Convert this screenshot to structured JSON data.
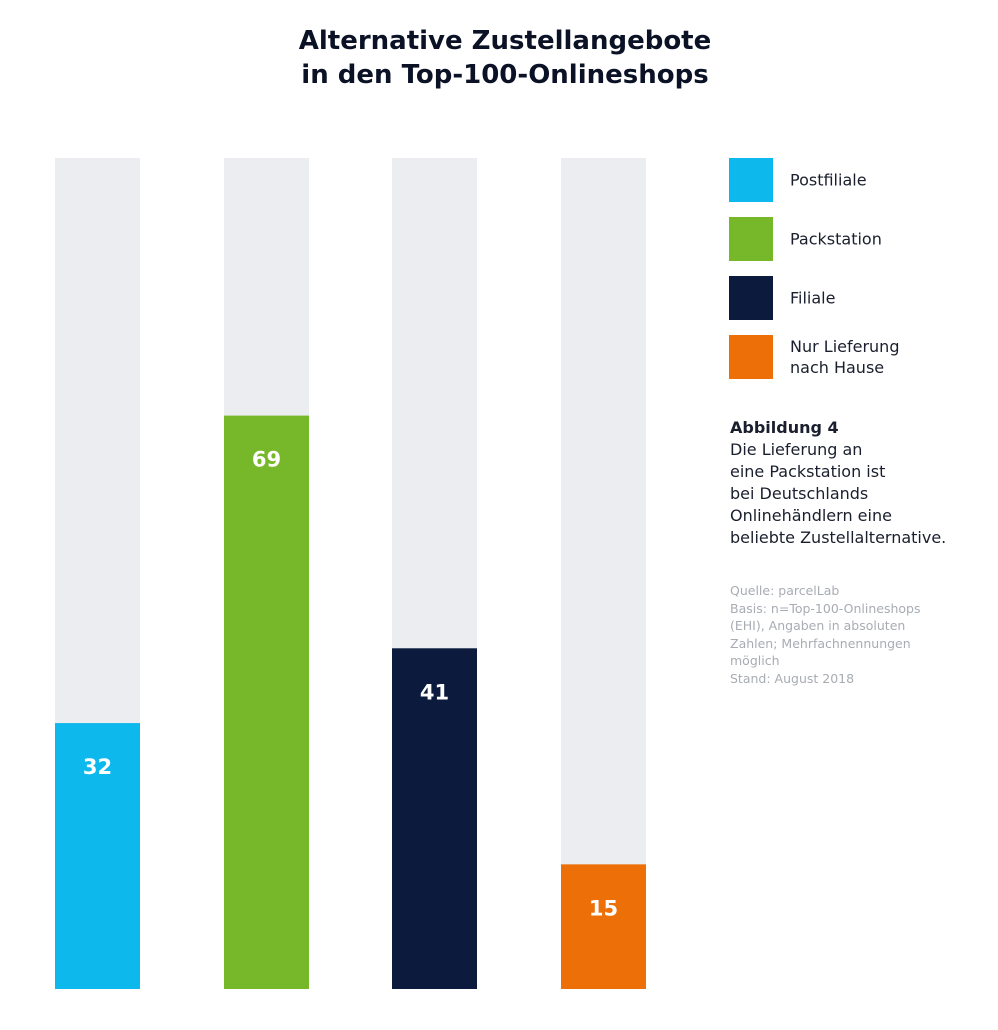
{
  "chart_data": {
    "type": "bar",
    "title": [
      "Alternative Zustellangebote",
      "in den Top-100-Onlineshops"
    ],
    "categories": [
      "Postfiliale",
      "Packstation",
      "Filiale",
      "Nur Lieferung nach Hause"
    ],
    "values": [
      32,
      69,
      41,
      15
    ],
    "colors": [
      "#0db8ec",
      "#76b82a",
      "#0b1a3d",
      "#ec7007"
    ],
    "track_color": "#ecedf1",
    "ylim": [
      0,
      100
    ],
    "xlabel": "",
    "ylabel": "",
    "grid": false,
    "legend_position": "right"
  },
  "legend": {
    "items": [
      {
        "label": "Postfiliale",
        "color": "#0db8ec"
      },
      {
        "label": "Packstation",
        "color": "#76b82a"
      },
      {
        "label": "Filiale",
        "color": "#0b1a3d"
      },
      {
        "label": "Nur Lieferung\nnach Hause",
        "color": "#ec7007"
      }
    ]
  },
  "caption": {
    "heading": "Abbildung 4",
    "body": "Die Lieferung an\neine Packstation ist\nbei Deutschlands\nOnlinehändlern eine\nbeliebte Zustellalternative."
  },
  "source": {
    "lines": [
      "Quelle: parcelLab",
      "Basis: n=Top-100-Onlineshops",
      "(EHI), Angaben in absoluten",
      "Zahlen; Mehrfachnennungen",
      "möglich",
      "Stand: August 2018"
    ]
  }
}
